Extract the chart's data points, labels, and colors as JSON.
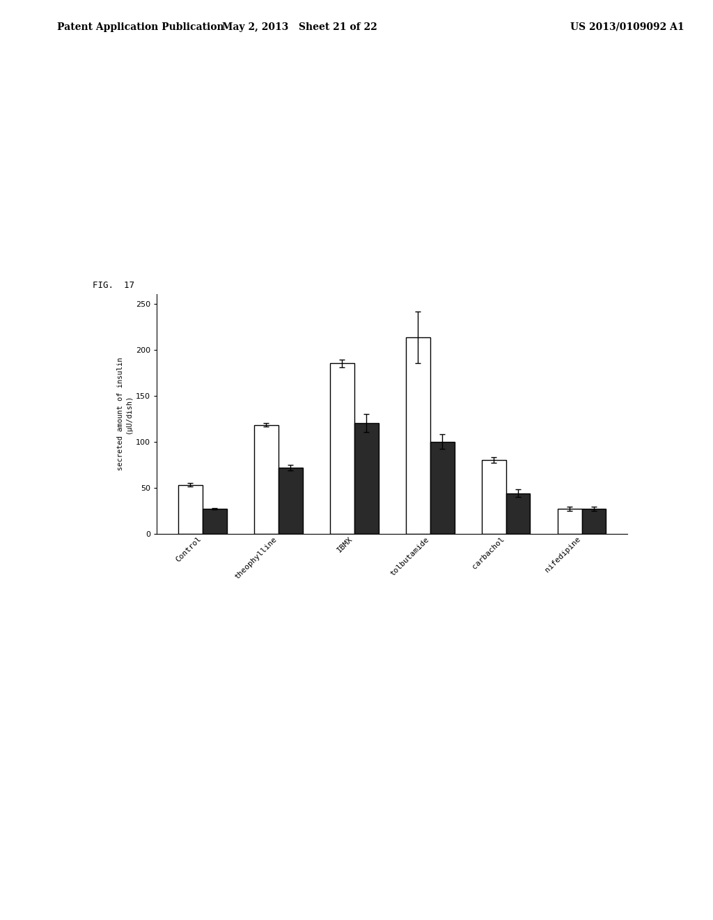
{
  "fig_label": "FIG.  17",
  "categories": [
    "Control",
    "theophylline",
    "IBMX",
    "tolbutamide",
    "carbachol",
    "nifedipine"
  ],
  "white_bars": [
    53,
    118,
    185,
    213,
    80,
    27
  ],
  "black_bars": [
    27,
    72,
    120,
    100,
    44,
    27
  ],
  "white_errors": [
    2,
    2,
    4,
    28,
    3,
    2
  ],
  "black_errors": [
    1,
    3,
    10,
    8,
    4,
    2
  ],
  "ylabel": "secreted amount of insulin\n(μU/dish)",
  "ylim": [
    0,
    260
  ],
  "yticks": [
    0,
    50,
    100,
    150,
    200,
    250
  ],
  "background_color": "#ffffff",
  "bar_width": 0.32,
  "white_color": "#ffffff",
  "black_color": "#2a2a2a",
  "edge_color": "#000000",
  "header_left": "Patent Application Publication",
  "header_center": "May 2, 2013   Sheet 21 of 22",
  "header_right": "US 2013/0109092 A1"
}
